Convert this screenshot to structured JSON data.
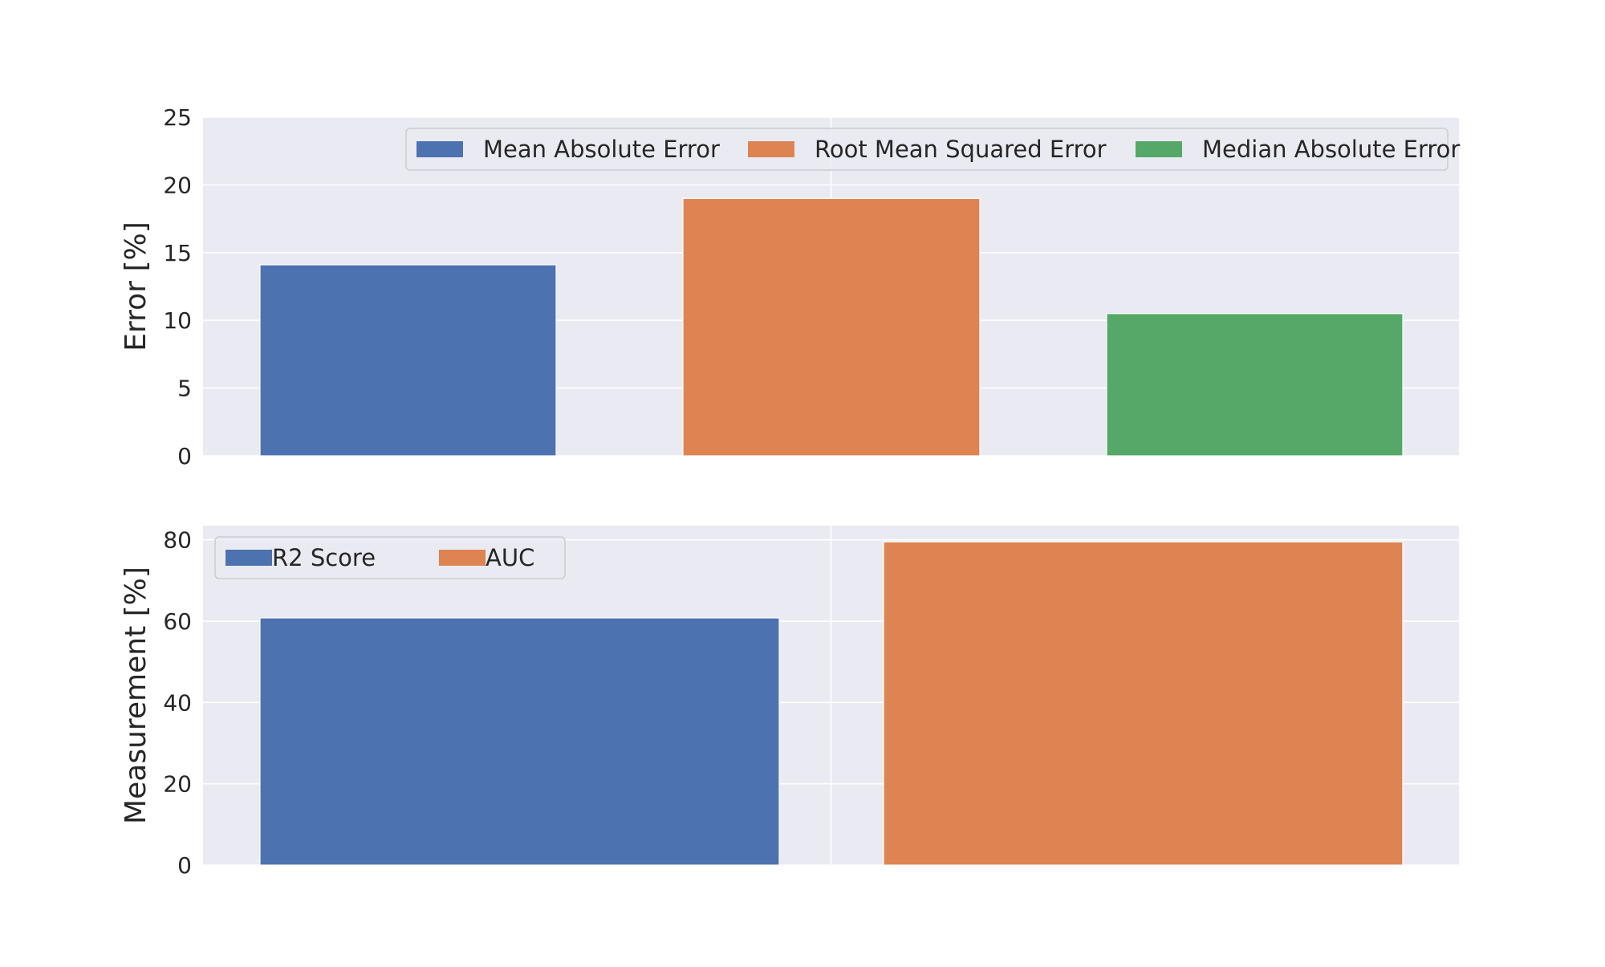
{
  "chart_data": [
    {
      "type": "bar",
      "title": "",
      "xlabel": "",
      "ylabel": "Error [%]",
      "ylim": [
        0,
        25
      ],
      "yticks": [
        0,
        5,
        10,
        15,
        20,
        25
      ],
      "grid": true,
      "legend_position": "top-right",
      "series": [
        {
          "name": "Mean Absolute Error",
          "value": 14.1,
          "color": "#4c72b0"
        },
        {
          "name": "Root Mean Squared Error",
          "value": 19.0,
          "color": "#dd8452"
        },
        {
          "name": "Median Absolute Error",
          "value": 10.5,
          "color": "#55a868"
        }
      ]
    },
    {
      "type": "bar",
      "title": "",
      "xlabel": "",
      "ylabel": "Measurement [%]",
      "ylim": [
        0,
        83.5
      ],
      "yticks": [
        0,
        20,
        40,
        60,
        80
      ],
      "grid": true,
      "legend_position": "top-left",
      "series": [
        {
          "name": "R2 Score",
          "value": 60.8,
          "color": "#4c72b0"
        },
        {
          "name": "AUC",
          "value": 79.5,
          "color": "#dd8452"
        }
      ]
    }
  ],
  "style": {
    "plot_background": "#eaeaf2",
    "grid_color": "#ffffff"
  }
}
